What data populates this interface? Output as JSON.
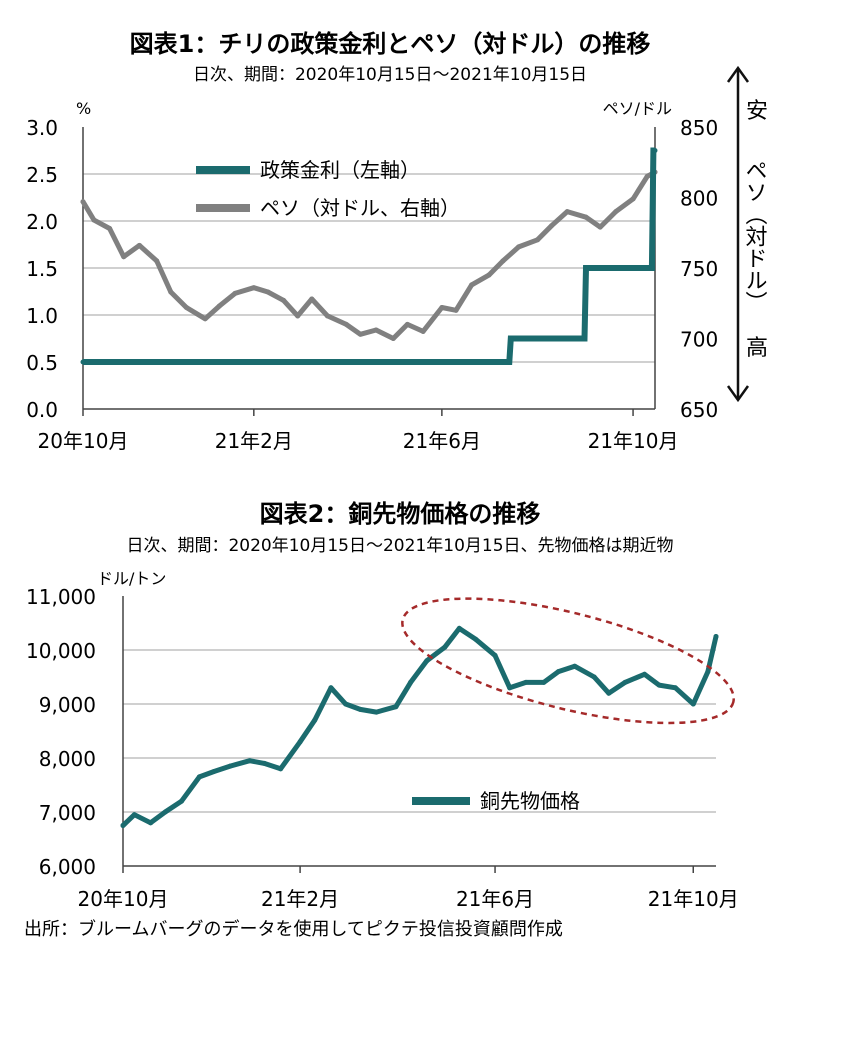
{
  "chart_data": [
    {
      "type": "line",
      "title": "図表1：チリの政策金利とペソ（対ドル）の推移",
      "subtitle": "日次、期間：2020年10月15日～2021年10月15日",
      "y_left_unit": "%",
      "y_right_unit": "ペソ/ドル",
      "y_left_ticks": [
        "3.0",
        "2.5",
        "2.0",
        "1.5",
        "1.0",
        "0.5",
        "0.0"
      ],
      "y_right_ticks": [
        "850",
        "800",
        "750",
        "700",
        "650"
      ],
      "ylim_left": [
        0,
        3.0
      ],
      "ylim_right": [
        650,
        850
      ],
      "right_axis_annotation": {
        "top": "安",
        "middle": "ペソ（対ドル）",
        "bottom": "高"
      },
      "x_tick_labels": [
        "20年10月",
        "21年2月",
        "21年6月",
        "21年10月"
      ],
      "x_range": [
        "2020-10-15",
        "2021-10-15"
      ],
      "legend_placement": "top-center",
      "series": [
        {
          "name": "政策金利（左軸）",
          "axis": "left",
          "color": "#1b6b6e",
          "x": [
            "2020-10-15",
            "2021-07-14",
            "2021-07-15",
            "2021-08-31",
            "2021-09-01",
            "2021-10-13",
            "2021-10-14",
            "2021-10-15"
          ],
          "values": [
            0.5,
            0.5,
            0.75,
            0.75,
            1.5,
            1.5,
            2.75,
            2.75
          ]
        },
        {
          "name": "ペソ（対ドル、右軸）",
          "axis": "right",
          "color": "#808080",
          "x": [
            "2020-10-15",
            "2020-10-22",
            "2020-11-01",
            "2020-11-10",
            "2020-11-20",
            "2020-12-01",
            "2020-12-10",
            "2020-12-20",
            "2021-01-01",
            "2021-01-10",
            "2021-01-20",
            "2021-02-01",
            "2021-02-10",
            "2021-02-20",
            "2021-03-01",
            "2021-03-10",
            "2021-03-20",
            "2021-04-01",
            "2021-04-10",
            "2021-04-20",
            "2021-05-01",
            "2021-05-10",
            "2021-05-20",
            "2021-06-01",
            "2021-06-10",
            "2021-06-20",
            "2021-07-01",
            "2021-07-10",
            "2021-07-20",
            "2021-08-01",
            "2021-08-10",
            "2021-08-20",
            "2021-09-01",
            "2021-09-10",
            "2021-09-20",
            "2021-10-01",
            "2021-10-10",
            "2021-10-15"
          ],
          "values": [
            797,
            784,
            778,
            758,
            766,
            755,
            733,
            722,
            714,
            723,
            732,
            736,
            733,
            727,
            716,
            728,
            716,
            710,
            703,
            706,
            700,
            710,
            705,
            722,
            720,
            738,
            745,
            755,
            765,
            770,
            780,
            790,
            786,
            779,
            790,
            799,
            815,
            818
          ]
        }
      ]
    },
    {
      "type": "line",
      "title": "図表2：銅先物価格の推移",
      "subtitle": "日次、期間：2020年10月15日～2021年10月15日、先物価格は期近物",
      "y_unit": "ドル/トン",
      "y_ticks": [
        "11,000",
        "10,000",
        "9,000",
        "8,000",
        "7,000",
        "6,000"
      ],
      "ylim": [
        6000,
        11000
      ],
      "x_tick_labels": [
        "20年10月",
        "21年2月",
        "21年6月",
        "21年10月"
      ],
      "x_range": [
        "2020-10-15",
        "2021-10-15"
      ],
      "legend_placement": "bottom-center",
      "annotation": "dashed ellipse around May–Sep 2021",
      "series": [
        {
          "name": "銅先物価格",
          "color": "#1b6b6e",
          "x": [
            "2020-10-15",
            "2020-10-22",
            "2020-11-01",
            "2020-11-10",
            "2020-11-20",
            "2020-12-01",
            "2020-12-10",
            "2020-12-20",
            "2021-01-01",
            "2021-01-10",
            "2021-01-20",
            "2021-02-01",
            "2021-02-10",
            "2021-02-20",
            "2021-03-01",
            "2021-03-10",
            "2021-03-20",
            "2021-04-01",
            "2021-04-10",
            "2021-04-20",
            "2021-05-01",
            "2021-05-10",
            "2021-05-20",
            "2021-06-01",
            "2021-06-10",
            "2021-06-20",
            "2021-07-01",
            "2021-07-10",
            "2021-07-20",
            "2021-08-01",
            "2021-08-10",
            "2021-08-20",
            "2021-09-01",
            "2021-09-10",
            "2021-09-20",
            "2021-10-01",
            "2021-10-10",
            "2021-10-15"
          ],
          "values": [
            6750,
            6950,
            6800,
            7000,
            7200,
            7650,
            7750,
            7850,
            7950,
            7900,
            7800,
            8300,
            8700,
            9300,
            9000,
            8900,
            8850,
            8950,
            9400,
            9800,
            10050,
            10400,
            10200,
            9900,
            9300,
            9400,
            9400,
            9600,
            9700,
            9500,
            9200,
            9400,
            9550,
            9350,
            9300,
            9000,
            9600,
            10250
          ]
        }
      ]
    }
  ],
  "source_note": "出所：ブルームバーグのデータを使用してピクテ投信投資顧問作成"
}
